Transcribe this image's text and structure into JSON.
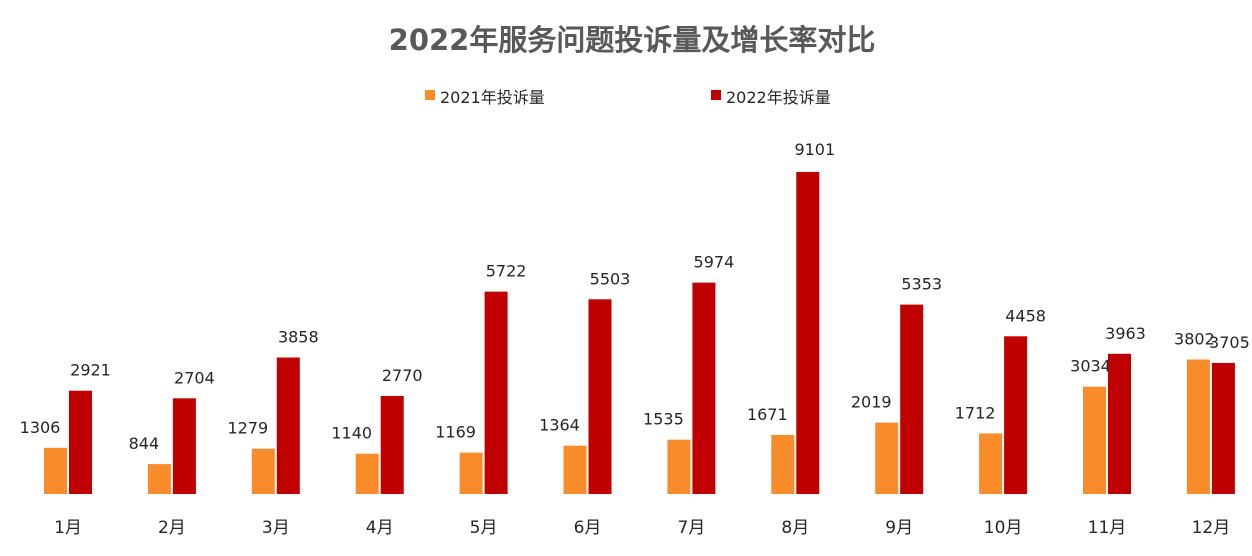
{
  "chart_data": {
    "type": "bar",
    "title": "2022年服务问题投诉量及增长率对比",
    "xlabel": "",
    "ylabel": "",
    "categories": [
      "1月",
      "2月",
      "3月",
      "4月",
      "5月",
      "6月",
      "7月",
      "8月",
      "9月",
      "10月",
      "11月",
      "12月"
    ],
    "series": [
      {
        "name": "2021年投诉量",
        "color": "#F98C2A",
        "values": [
          1306,
          844,
          1279,
          1140,
          1169,
          1364,
          1535,
          1671,
          2019,
          1712,
          3034,
          3802
        ]
      },
      {
        "name": "2022年投诉量",
        "color": "#C00000",
        "values": [
          2921,
          2704,
          3858,
          2770,
          5722,
          5503,
          5974,
          9101,
          5353,
          4458,
          3963,
          3705
        ]
      }
    ],
    "ylim": [
      0,
      9101
    ],
    "grid": false,
    "y_axis_visible": false,
    "legend_position": "top-center",
    "data_labels": true
  }
}
